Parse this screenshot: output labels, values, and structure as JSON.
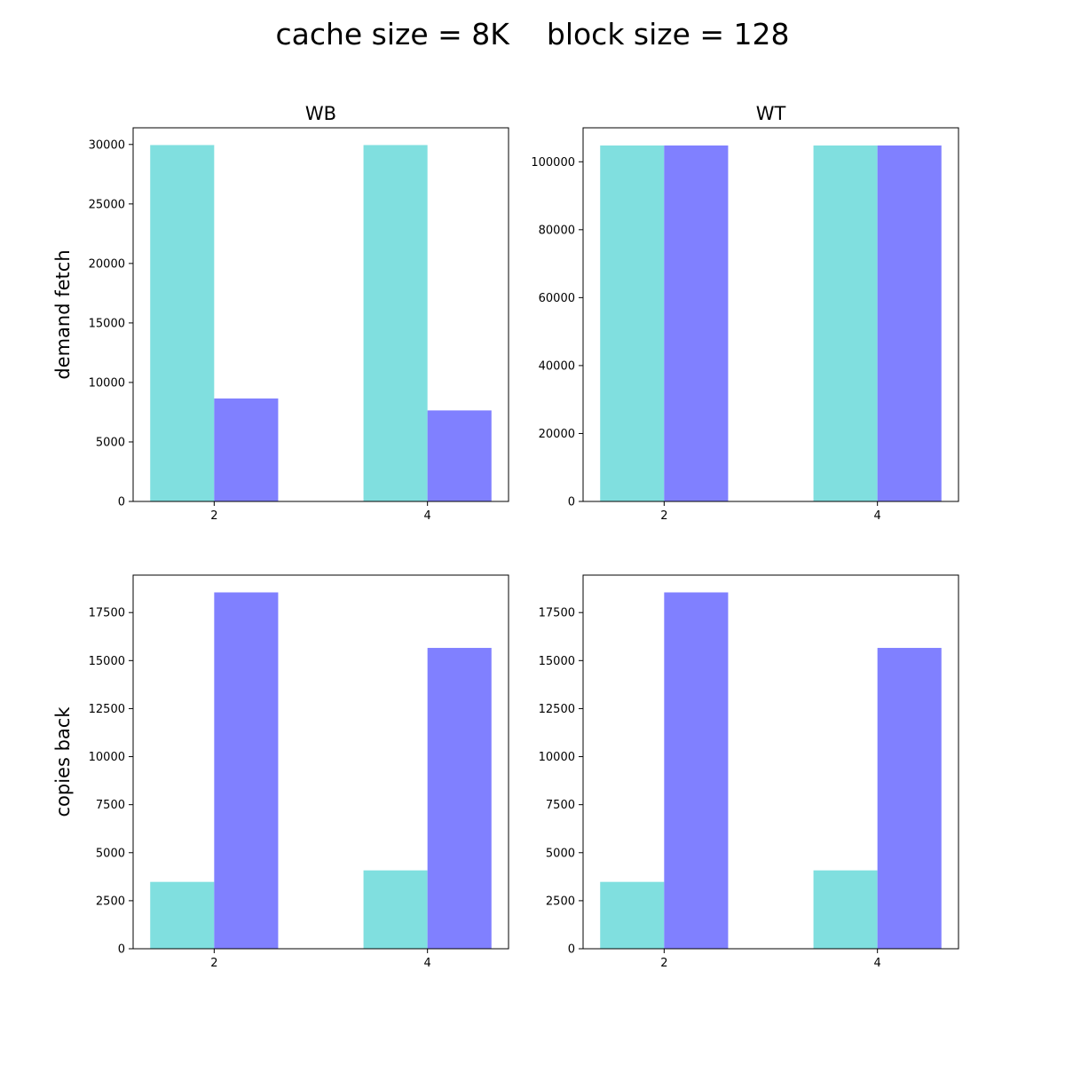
{
  "figure": {
    "title": "cache size = 8K    block size = 128"
  },
  "colors": {
    "series_1": "#80dfdf",
    "series_2": "#8080ff",
    "axes": "#000000",
    "background": "#ffffff"
  },
  "chart_data": [
    {
      "id": "wb-demand-fetch",
      "type": "bar",
      "title": "WB",
      "xlabel": "",
      "ylabel": "demand fetch",
      "categories": [
        "2",
        "4"
      ],
      "series": [
        {
          "values": [
            29950,
            29950
          ]
        },
        {
          "values": [
            8650,
            7650
          ]
        }
      ],
      "ylim": [
        0,
        31400
      ],
      "yticks": [
        0,
        5000,
        10000,
        15000,
        20000,
        25000,
        30000
      ],
      "grid": false
    },
    {
      "id": "wt-demand-fetch",
      "type": "bar",
      "title": "WT",
      "xlabel": "",
      "ylabel": "",
      "categories": [
        "2",
        "4"
      ],
      "series": [
        {
          "values": [
            104800,
            104800
          ]
        },
        {
          "values": [
            104800,
            104800
          ]
        }
      ],
      "ylim": [
        0,
        110000
      ],
      "yticks": [
        0,
        20000,
        40000,
        60000,
        80000,
        100000
      ],
      "grid": false
    },
    {
      "id": "wb-copies-back",
      "type": "bar",
      "title": "",
      "xlabel": "",
      "ylabel": "copies back",
      "categories": [
        "2",
        "4"
      ],
      "series": [
        {
          "values": [
            3480,
            4080
          ]
        },
        {
          "values": [
            18550,
            15660
          ]
        }
      ],
      "ylim": [
        0,
        19450
      ],
      "yticks": [
        0,
        2500,
        5000,
        7500,
        10000,
        12500,
        15000,
        17500
      ],
      "grid": false
    },
    {
      "id": "wt-copies-back",
      "type": "bar",
      "title": "",
      "xlabel": "",
      "ylabel": "",
      "categories": [
        "2",
        "4"
      ],
      "series": [
        {
          "values": [
            3480,
            4080
          ]
        },
        {
          "values": [
            18550,
            15660
          ]
        }
      ],
      "ylim": [
        0,
        19450
      ],
      "yticks": [
        0,
        2500,
        5000,
        7500,
        10000,
        12500,
        15000,
        17500
      ],
      "grid": false
    }
  ]
}
